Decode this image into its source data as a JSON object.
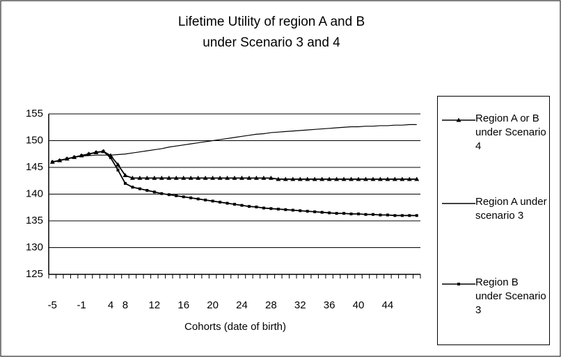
{
  "chart_data": {
    "type": "line",
    "title_lines": [
      "Lifetime Utility of region A and B",
      "under Scenario 3 and 4"
    ],
    "x_label": "Cohorts (date of birth)",
    "categories": [
      "-5",
      null,
      null,
      null,
      "-1",
      null,
      null,
      null,
      "4",
      null,
      "8",
      null,
      null,
      null,
      "12",
      null,
      null,
      null,
      "16",
      null,
      null,
      null,
      "20",
      null,
      null,
      null,
      "24",
      null,
      null,
      null,
      "28",
      null,
      null,
      null,
      "32",
      null,
      null,
      null,
      "36",
      null,
      null,
      null,
      "40",
      null,
      null,
      null,
      "44",
      null,
      null,
      null,
      null
    ],
    "ylim": [
      125,
      155
    ],
    "yticks": [
      125,
      130,
      135,
      140,
      145,
      150,
      155
    ],
    "grid": true,
    "legend": "right",
    "series": [
      {
        "name": "Region A or B under Scenario 4",
        "color": "#000000",
        "marker": "triangle",
        "values": [
          146.0,
          146.3,
          146.6,
          146.9,
          147.2,
          147.5,
          147.8,
          148.0,
          147.2,
          145.5,
          143.5,
          143.0,
          143.0,
          143.0,
          143.0,
          143.0,
          143.0,
          143.0,
          143.0,
          143.0,
          143.0,
          143.0,
          143.0,
          143.0,
          143.0,
          143.0,
          143.0,
          143.0,
          143.0,
          143.0,
          143.0,
          142.8,
          142.8,
          142.8,
          142.8,
          142.8,
          142.8,
          142.8,
          142.8,
          142.8,
          142.8,
          142.8,
          142.8,
          142.8,
          142.8,
          142.8,
          142.8,
          142.8,
          142.8,
          142.8,
          142.8
        ]
      },
      {
        "name": "Region A under scenario 3",
        "color": "#000000",
        "marker": "none",
        "values": [
          146.0,
          146.3,
          146.6,
          146.9,
          147.1,
          147.2,
          147.3,
          147.3,
          147.3,
          147.4,
          147.5,
          147.7,
          147.9,
          148.1,
          148.3,
          148.5,
          148.8,
          149.0,
          149.2,
          149.4,
          149.6,
          149.8,
          150.0,
          150.2,
          150.4,
          150.6,
          150.8,
          151.0,
          151.2,
          151.3,
          151.5,
          151.6,
          151.7,
          151.8,
          151.9,
          152.0,
          152.1,
          152.2,
          152.3,
          152.4,
          152.5,
          152.6,
          152.6,
          152.7,
          152.7,
          152.8,
          152.8,
          152.9,
          152.9,
          153.0,
          153.0
        ]
      },
      {
        "name": "Region B under Scenario 3",
        "color": "#000000",
        "marker": "square",
        "values": [
          146.0,
          146.3,
          146.6,
          146.9,
          147.2,
          147.5,
          147.8,
          148.0,
          146.8,
          144.5,
          142.0,
          141.3,
          141.0,
          140.7,
          140.4,
          140.1,
          139.9,
          139.7,
          139.5,
          139.3,
          139.1,
          138.9,
          138.7,
          138.5,
          138.3,
          138.1,
          137.9,
          137.7,
          137.6,
          137.4,
          137.3,
          137.2,
          137.1,
          137.0,
          136.9,
          136.8,
          136.7,
          136.6,
          136.5,
          136.4,
          136.4,
          136.3,
          136.3,
          136.2,
          136.2,
          136.1,
          136.1,
          136.0,
          136.0,
          136.0,
          136.0
        ]
      }
    ]
  }
}
